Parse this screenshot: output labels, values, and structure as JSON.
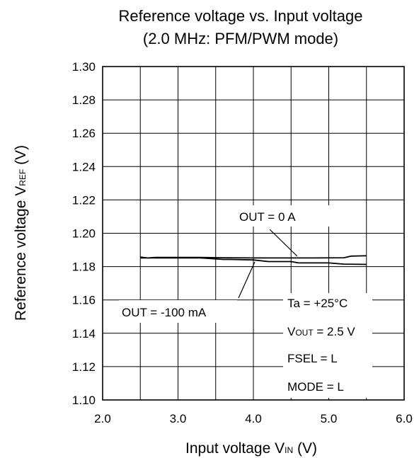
{
  "chart_data": {
    "type": "line",
    "title": "Reference voltage vs. Input voltage",
    "subtitle": "(2.0 MHz: PFM/PWM mode)",
    "xlabel": {
      "main": "Input voltage V",
      "sub": "IN",
      "unit": " (V)"
    },
    "ylabel": {
      "main": "Reference voltage V",
      "sub": "REF",
      "unit": " (V)"
    },
    "xlim": [
      2.0,
      6.0
    ],
    "ylim": [
      1.1,
      1.3
    ],
    "x_ticks": [
      2.0,
      3.0,
      4.0,
      5.0,
      6.0
    ],
    "x_tick_labels": [
      "2.0",
      "3.0",
      "4.0",
      "5.0",
      "6.0"
    ],
    "y_ticks": [
      1.1,
      1.12,
      1.14,
      1.16,
      1.18,
      1.2,
      1.22,
      1.24,
      1.26,
      1.28,
      1.3
    ],
    "y_tick_labels": [
      "1.10",
      "1.12",
      "1.14",
      "1.16",
      "1.18",
      "1.20",
      "1.22",
      "1.24",
      "1.26",
      "1.28",
      "1.30"
    ],
    "grid": true,
    "series": [
      {
        "name": "OUT = 0 A",
        "x": [
          2.5,
          2.6,
          2.7,
          3.0,
          3.3,
          3.6,
          4.0,
          4.4,
          4.8,
          5.2,
          5.3,
          5.5
        ],
        "y": [
          1.1857,
          1.1852,
          1.1855,
          1.1855,
          1.1855,
          1.1853,
          1.1852,
          1.1852,
          1.1852,
          1.1853,
          1.1863,
          1.1865
        ]
      },
      {
        "name": "OUT = -100 mA",
        "x": [
          2.5,
          2.7,
          3.0,
          3.3,
          3.6,
          3.7,
          4.0,
          4.2,
          4.5,
          4.6,
          4.8,
          5.0,
          5.2,
          5.5
        ],
        "y": [
          1.1852,
          1.1852,
          1.1852,
          1.1852,
          1.1843,
          1.1843,
          1.184,
          1.183,
          1.183,
          1.1822,
          1.1822,
          1.1822,
          1.1815,
          1.1813
        ]
      }
    ],
    "annotations": {
      "label_0a": "OUT = 0 A",
      "label_100ma": "OUT = -100 mA",
      "ta": "Ta = +25°C",
      "vout": {
        "main": "V",
        "sub": "OUT",
        "rest": " = 2.5 V"
      },
      "fsel": "FSEL = L",
      "mode": "MODE = L"
    }
  }
}
